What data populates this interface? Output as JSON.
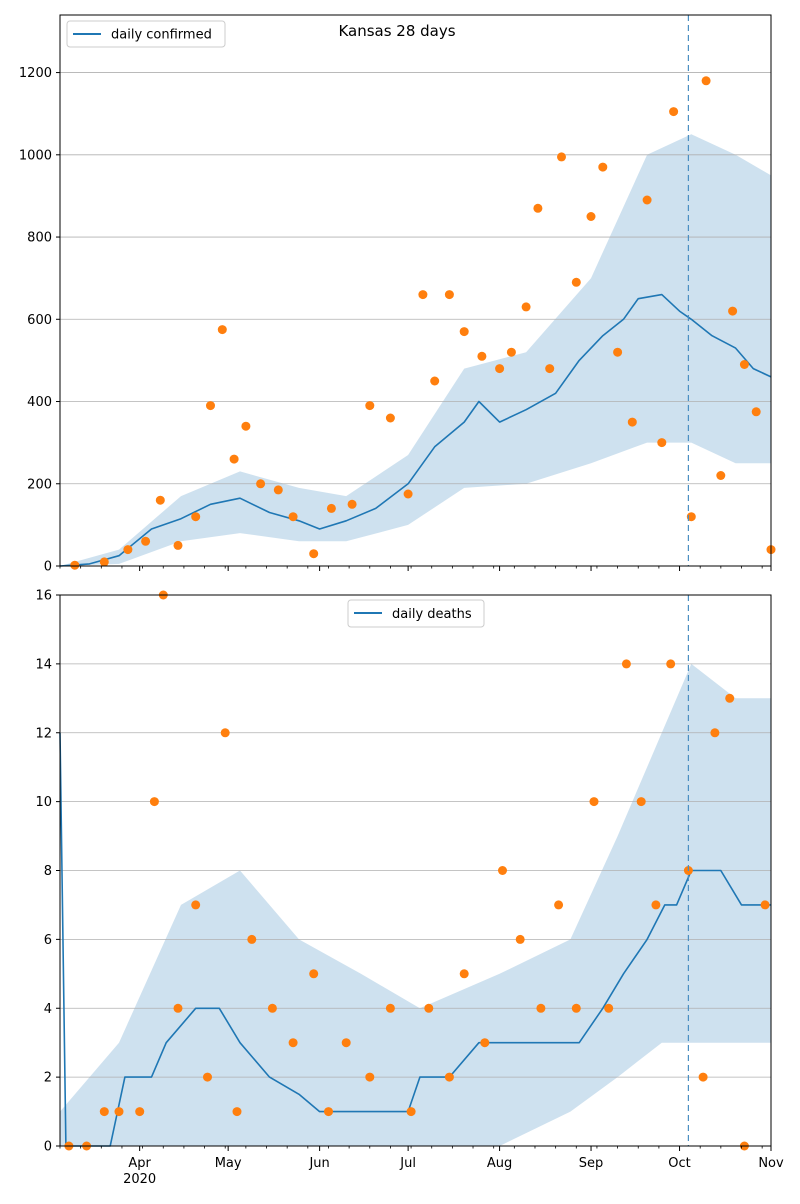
{
  "chart_data": [
    {
      "type": "line",
      "title": "Kansas 28 days",
      "xlabel": "",
      "ylabel": "",
      "xlim": [
        "2020-03-05",
        "2020-11-01"
      ],
      "ylim": [
        0,
        1340
      ],
      "yticks": [
        0,
        200,
        400,
        600,
        800,
        1000,
        1200
      ],
      "grid": "horizontal",
      "legend_position": "top-left",
      "forecast_date": "2020-10-04",
      "series": [
        {
          "name": "daily confirmed",
          "kind": "line",
          "color": "#1f77b4",
          "x": [
            "2020-03-05",
            "2020-03-15",
            "2020-03-25",
            "2020-04-05",
            "2020-04-15",
            "2020-04-25",
            "2020-05-05",
            "2020-05-15",
            "2020-05-25",
            "2020-06-01",
            "2020-06-10",
            "2020-06-20",
            "2020-07-01",
            "2020-07-10",
            "2020-07-20",
            "2020-07-25",
            "2020-08-01",
            "2020-08-10",
            "2020-08-20",
            "2020-08-28",
            "2020-09-05",
            "2020-09-12",
            "2020-09-17",
            "2020-09-25",
            "2020-10-01",
            "2020-10-05",
            "2020-10-12",
            "2020-10-20",
            "2020-10-26",
            "2020-11-01"
          ],
          "values": [
            0,
            5,
            25,
            90,
            115,
            150,
            165,
            130,
            110,
            90,
            110,
            140,
            200,
            290,
            350,
            400,
            350,
            380,
            420,
            500,
            560,
            600,
            650,
            660,
            620,
            600,
            560,
            530,
            480,
            460
          ]
        },
        {
          "name": "",
          "kind": "band",
          "color": "#1f77b4",
          "x": [
            "2020-03-05",
            "2020-03-25",
            "2020-04-15",
            "2020-05-05",
            "2020-05-25",
            "2020-06-10",
            "2020-07-01",
            "2020-07-20",
            "2020-08-10",
            "2020-09-01",
            "2020-09-20",
            "2020-10-05",
            "2020-10-20",
            "2020-11-01"
          ],
          "lower": [
            0,
            5,
            60,
            80,
            60,
            60,
            100,
            190,
            200,
            250,
            300,
            300,
            250,
            250
          ],
          "upper": [
            0,
            40,
            170,
            230,
            190,
            170,
            270,
            480,
            520,
            700,
            1000,
            1050,
            1000,
            950
          ]
        },
        {
          "name": "",
          "kind": "scatter",
          "color": "#ff7f0e",
          "x": [
            "2020-03-10",
            "2020-03-20",
            "2020-03-28",
            "2020-04-03",
            "2020-04-08",
            "2020-04-14",
            "2020-04-20",
            "2020-04-25",
            "2020-04-29",
            "2020-05-03",
            "2020-05-07",
            "2020-05-12",
            "2020-05-18",
            "2020-05-23",
            "2020-05-30",
            "2020-06-05",
            "2020-06-12",
            "2020-06-18",
            "2020-06-25",
            "2020-07-01",
            "2020-07-06",
            "2020-07-10",
            "2020-07-15",
            "2020-07-20",
            "2020-07-26",
            "2020-08-01",
            "2020-08-05",
            "2020-08-10",
            "2020-08-14",
            "2020-08-18",
            "2020-08-22",
            "2020-08-27",
            "2020-09-01",
            "2020-09-05",
            "2020-09-10",
            "2020-09-15",
            "2020-09-20",
            "2020-09-25",
            "2020-09-29",
            "2020-10-05",
            "2020-10-10",
            "2020-10-15",
            "2020-10-19",
            "2020-10-23",
            "2020-10-27",
            "2020-11-01"
          ],
          "values": [
            2,
            10,
            40,
            60,
            160,
            50,
            120,
            390,
            575,
            260,
            340,
            200,
            185,
            120,
            30,
            140,
            150,
            390,
            360,
            175,
            660,
            450,
            660,
            570,
            510,
            480,
            520,
            630,
            870,
            480,
            995,
            690,
            850,
            970,
            520,
            350,
            890,
            300,
            1105,
            120,
            1180,
            220,
            620,
            490,
            375,
            40
          ]
        }
      ]
    },
    {
      "type": "line",
      "title": "",
      "xlabel": "",
      "ylabel": "",
      "xlim": [
        "2020-03-05",
        "2020-11-01"
      ],
      "ylim": [
        0,
        16
      ],
      "yticks": [
        0,
        2,
        4,
        6,
        8,
        10,
        12,
        14,
        16
      ],
      "xtick_labels": [
        "Apr\n2020",
        "May",
        "Jun",
        "Jul",
        "Aug",
        "Sep",
        "Oct",
        "Nov"
      ],
      "grid": "horizontal",
      "legend_position": "top-center",
      "forecast_date": "2020-10-04",
      "series": [
        {
          "name": "daily deaths",
          "kind": "line",
          "color": "#1f77b4",
          "x": [
            "2020-03-05",
            "2020-03-07",
            "2020-03-22",
            "2020-03-27",
            "2020-04-05",
            "2020-04-10",
            "2020-04-20",
            "2020-04-28",
            "2020-05-05",
            "2020-05-15",
            "2020-05-25",
            "2020-06-01",
            "2020-06-10",
            "2020-06-20",
            "2020-07-01",
            "2020-07-05",
            "2020-07-15",
            "2020-07-25",
            "2020-08-01",
            "2020-08-20",
            "2020-08-28",
            "2020-09-05",
            "2020-09-12",
            "2020-09-20",
            "2020-09-26",
            "2020-09-30",
            "2020-10-05",
            "2020-10-15",
            "2020-10-22",
            "2020-10-29",
            "2020-11-01"
          ],
          "values": [
            12,
            0,
            0,
            2,
            2,
            3,
            4,
            4,
            3,
            2,
            1.5,
            1,
            1,
            1,
            1,
            2,
            2,
            3,
            3,
            3,
            3,
            4,
            5,
            6,
            7,
            7,
            8,
            8,
            7,
            7,
            7
          ]
        },
        {
          "name": "",
          "kind": "band",
          "color": "#1f77b4",
          "x": [
            "2020-03-05",
            "2020-03-25",
            "2020-04-15",
            "2020-05-05",
            "2020-05-25",
            "2020-06-15",
            "2020-07-05",
            "2020-08-01",
            "2020-08-25",
            "2020-09-10",
            "2020-09-25",
            "2020-10-05",
            "2020-10-20",
            "2020-11-01"
          ],
          "lower": [
            0,
            0,
            0,
            0,
            0,
            0,
            0,
            0,
            1,
            2,
            3,
            3,
            3,
            3
          ],
          "upper": [
            1,
            3,
            7,
            8,
            6,
            5,
            4,
            5,
            6,
            9,
            12,
            14,
            13,
            13
          ]
        },
        {
          "name": "",
          "kind": "scatter",
          "color": "#ff7f0e",
          "x": [
            "2020-03-08",
            "2020-03-14",
            "2020-03-20",
            "2020-03-25",
            "2020-04-01",
            "2020-04-06",
            "2020-04-09",
            "2020-04-14",
            "2020-04-20",
            "2020-04-24",
            "2020-04-30",
            "2020-05-04",
            "2020-05-09",
            "2020-05-16",
            "2020-05-23",
            "2020-05-30",
            "2020-06-04",
            "2020-06-10",
            "2020-06-18",
            "2020-06-25",
            "2020-07-02",
            "2020-07-08",
            "2020-07-15",
            "2020-07-20",
            "2020-07-27",
            "2020-08-02",
            "2020-08-08",
            "2020-08-15",
            "2020-08-21",
            "2020-08-27",
            "2020-09-02",
            "2020-09-07",
            "2020-09-13",
            "2020-09-18",
            "2020-09-23",
            "2020-09-28",
            "2020-10-04",
            "2020-10-09",
            "2020-10-13",
            "2020-10-18",
            "2020-10-23",
            "2020-10-30"
          ],
          "values": [
            0,
            0,
            1,
            1,
            1,
            10,
            16,
            4,
            7,
            2,
            12,
            1,
            6,
            4,
            3,
            5,
            1,
            3,
            2,
            4,
            1,
            4,
            2,
            5,
            3,
            8,
            6,
            4,
            7,
            4,
            10,
            4,
            14,
            10,
            7,
            14,
            8,
            2,
            12,
            13,
            0,
            7
          ]
        }
      ]
    }
  ]
}
